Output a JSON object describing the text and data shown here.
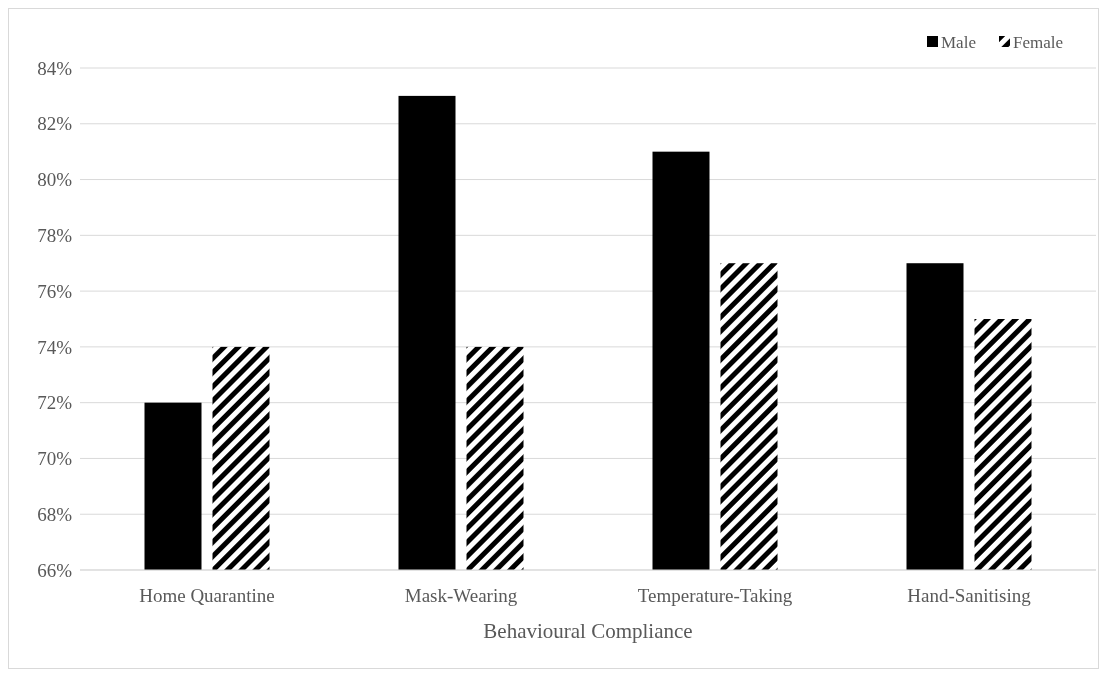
{
  "chart_data": {
    "type": "bar",
    "xlabel": "Behavioural Compliance",
    "categories": [
      "Home Quarantine",
      "Mask-Wearing",
      "Temperature-Taking",
      "Hand-Sanitising"
    ],
    "series": [
      {
        "name": "Male",
        "color": "#000000",
        "values": [
          72,
          83,
          81,
          77
        ]
      },
      {
        "name": "Female",
        "color": "#000000",
        "values": [
          74,
          74,
          77,
          75
        ]
      }
    ],
    "ylim": [
      66,
      84
    ],
    "yticks": [
      {
        "value": 66,
        "label": "66%"
      },
      {
        "value": 68,
        "label": "68%"
      },
      {
        "value": 70,
        "label": "70%"
      },
      {
        "value": 72,
        "label": "72%"
      },
      {
        "value": 74,
        "label": "74%"
      },
      {
        "value": 76,
        "label": "76%"
      },
      {
        "value": 78,
        "label": "78%"
      },
      {
        "value": 80,
        "label": "80%"
      },
      {
        "value": 82,
        "label": "82%"
      },
      {
        "value": 84,
        "label": "84%"
      }
    ],
    "grid": "y",
    "legend": "top right"
  }
}
